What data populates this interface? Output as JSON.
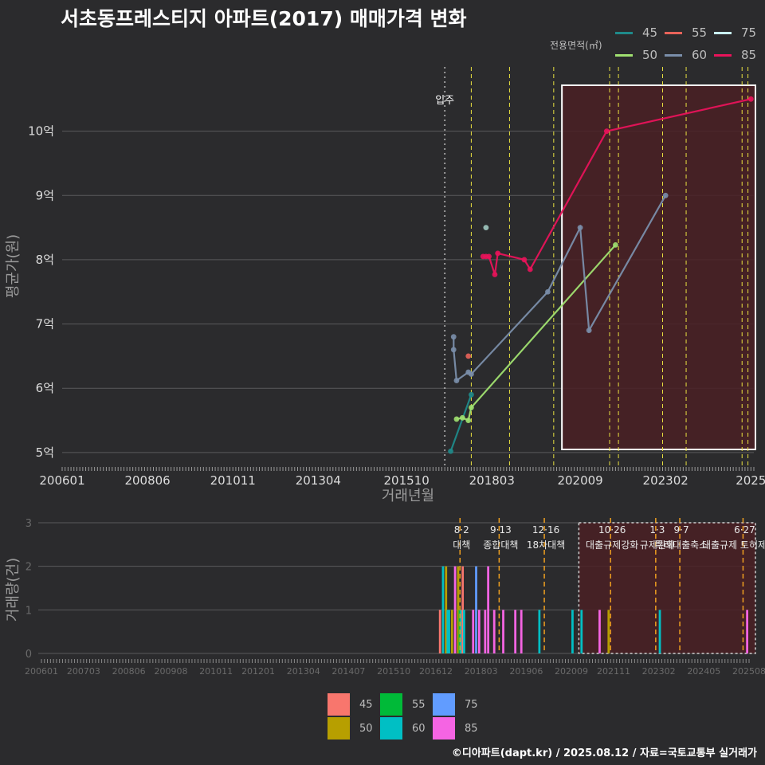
{
  "title": "서초동프레스티지 아파트(2017) 매매가격 변화",
  "footer": "©디아파트(dapt.kr) / 2025.08.12 / 자료=국토교통부 실거래가",
  "top_legend": {
    "title": "전용면적(㎡)",
    "items": [
      {
        "label": "45",
        "color": "#1f8a8a"
      },
      {
        "label": "55",
        "color": "#e8635a"
      },
      {
        "label": "75",
        "color": "#c8f0f8"
      },
      {
        "label": "50",
        "color": "#a0e070"
      },
      {
        "label": "60",
        "color": "#7a8eaa"
      },
      {
        "label": "85",
        "color": "#e8135a"
      }
    ]
  },
  "bottom_legend": {
    "items": [
      {
        "label": "45",
        "color": "#f8766d"
      },
      {
        "label": "55",
        "color": "#00ba38"
      },
      {
        "label": "75",
        "color": "#619cff"
      },
      {
        "label": "50",
        "color": "#b79f00"
      },
      {
        "label": "60",
        "color": "#00bfc4"
      },
      {
        "label": "85",
        "color": "#f564e3"
      }
    ]
  },
  "chart_data": [
    {
      "type": "line",
      "xlabel": "거래년월",
      "ylabel": "평균가(원)",
      "x_ticks": [
        "200601",
        "200806",
        "201011",
        "201304",
        "201510",
        "201803",
        "202009",
        "202302",
        "2025"
      ],
      "y_ticks": [
        "5억",
        "6억",
        "7억",
        "8억",
        "9억",
        "10억"
      ],
      "ylim": [
        4.8,
        11.0
      ],
      "xlim": [
        "2006-01",
        "2025-08"
      ],
      "grid": true,
      "annotation": "입주",
      "highlight_period": [
        "2020-12",
        "2025-08"
      ],
      "policy_lines": [
        "2017-08",
        "2018-09",
        "2019-12",
        "2021-10",
        "2023-01",
        "2023-09",
        "2025-06"
      ],
      "series": [
        {
          "name": "45",
          "color": "#1f8a8a",
          "points": [
            [
              "2017-01",
              5.02
            ],
            [
              "2017-08",
              5.9
            ]
          ]
        },
        {
          "name": "50",
          "color": "#a0e070",
          "points": [
            [
              "2017-03",
              5.52
            ],
            [
              "2017-05",
              5.54
            ],
            [
              "2017-07",
              5.5
            ],
            [
              "2017-08",
              5.7
            ],
            [
              "2021-09",
              8.23
            ]
          ]
        },
        {
          "name": "55",
          "color": "#e8635a",
          "points": [
            [
              "2017-07",
              6.5
            ]
          ]
        },
        {
          "name": "60",
          "color": "#7a8eaa",
          "points": [
            [
              "2017-02",
              6.8
            ],
            [
              "2017-02",
              6.6
            ],
            [
              "2017-03",
              6.12
            ],
            [
              "2017-07",
              6.25
            ],
            [
              "2017-08",
              6.22
            ],
            [
              "2019-10",
              7.5
            ],
            [
              "2020-09",
              8.5
            ],
            [
              "2020-12",
              6.9
            ],
            [
              "2023-02",
              9.0
            ]
          ]
        },
        {
          "name": "75",
          "color": "#a0c8c0",
          "points": [
            [
              "2018-01",
              8.5
            ]
          ]
        },
        {
          "name": "85",
          "color": "#e8135a",
          "points": [
            [
              "2017-12",
              8.05
            ],
            [
              "2018-01",
              8.05
            ],
            [
              "2018-02",
              8.05
            ],
            [
              "2018-04",
              7.77
            ],
            [
              "2018-05",
              8.1
            ],
            [
              "2019-02",
              8.0
            ],
            [
              "2019-04",
              7.85
            ],
            [
              "2021-06",
              10.0
            ],
            [
              "2025-07",
              10.5
            ]
          ]
        }
      ]
    },
    {
      "type": "bar",
      "xlabel": "",
      "ylabel": "거래량(건)",
      "x_ticks": [
        "200601",
        "200703",
        "200806",
        "200908",
        "201011",
        "201201",
        "201304",
        "201407",
        "201510",
        "201612",
        "201803",
        "201906",
        "202009",
        "202111",
        "202302",
        "202405",
        "202508"
      ],
      "y_ticks": [
        "0",
        "1",
        "2",
        "3"
      ],
      "ylim": [
        0,
        3
      ],
      "highlight_period": [
        "2020-12",
        "2025-08"
      ],
      "policy_events": [
        {
          "date": "2017-08",
          "label": "8·2 대책"
        },
        {
          "date": "2018-09",
          "label": "9·13 종합대책"
        },
        {
          "date": "2019-12",
          "label": "12·16 18차대책"
        },
        {
          "date": "2021-10",
          "label": "10·26 대출규제강화"
        },
        {
          "date": "2023-01",
          "label": "1·3 규제완화"
        },
        {
          "date": "2023-09",
          "label": "9·7 특례대출축소"
        },
        {
          "date": "2025-06",
          "label": "6·27 대출규제 토허제 해제"
        }
      ],
      "bars": [
        {
          "date": "2017-01",
          "size": "45",
          "count": 1
        },
        {
          "date": "2017-02",
          "size": "60",
          "count": 2
        },
        {
          "date": "2017-03",
          "size": "50",
          "count": 2
        },
        {
          "date": "2017-03",
          "size": "60",
          "count": 1
        },
        {
          "date": "2017-04",
          "size": "60",
          "count": 1
        },
        {
          "date": "2017-05",
          "size": "50",
          "count": 1
        },
        {
          "date": "2017-06",
          "size": "85",
          "count": 2
        },
        {
          "date": "2017-07",
          "size": "50",
          "count": 2
        },
        {
          "date": "2017-07",
          "size": "55",
          "count": 1
        },
        {
          "date": "2017-08",
          "size": "60",
          "count": 1
        },
        {
          "date": "2017-08",
          "size": "45",
          "count": 2
        },
        {
          "date": "2017-09",
          "size": "60",
          "count": 1
        },
        {
          "date": "2017-12",
          "size": "85",
          "count": 1
        },
        {
          "date": "2018-01",
          "size": "75",
          "count": 2
        },
        {
          "date": "2018-02",
          "size": "85",
          "count": 1
        },
        {
          "date": "2018-04",
          "size": "85",
          "count": 1
        },
        {
          "date": "2018-05",
          "size": "85",
          "count": 2
        },
        {
          "date": "2018-07",
          "size": "85",
          "count": 1
        },
        {
          "date": "2018-10",
          "size": "85",
          "count": 1
        },
        {
          "date": "2019-02",
          "size": "85",
          "count": 1
        },
        {
          "date": "2019-04",
          "size": "85",
          "count": 1
        },
        {
          "date": "2019-10",
          "size": "60",
          "count": 1
        },
        {
          "date": "2020-09",
          "size": "60",
          "count": 1
        },
        {
          "date": "2020-12",
          "size": "60",
          "count": 1
        },
        {
          "date": "2021-06",
          "size": "85",
          "count": 1
        },
        {
          "date": "2021-09",
          "size": "50",
          "count": 1
        },
        {
          "date": "2023-02",
          "size": "60",
          "count": 1
        },
        {
          "date": "2025-07",
          "size": "85",
          "count": 1
        }
      ]
    }
  ]
}
